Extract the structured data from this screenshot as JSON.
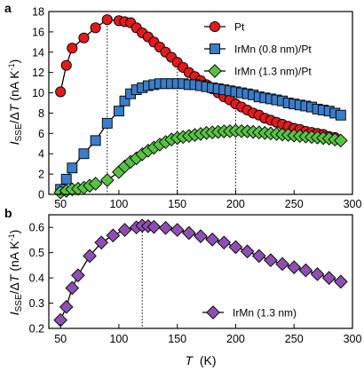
{
  "chart_data": [
    {
      "panel_label": "a",
      "type": "line",
      "x": [
        50,
        55,
        60,
        65,
        70,
        75,
        80,
        85,
        90,
        95,
        100,
        105,
        110,
        115,
        120,
        125,
        130,
        135,
        140,
        145,
        150,
        155,
        160,
        165,
        170,
        175,
        180,
        185,
        190,
        195,
        200,
        205,
        210,
        215,
        220,
        225,
        230,
        235,
        240,
        245,
        250,
        255,
        260,
        265,
        270,
        275,
        280,
        285,
        290
      ],
      "series": [
        {
          "name": "Pt",
          "color": "#e31a1c",
          "marker": "circle",
          "points": [
            [
              50,
              10.1
            ],
            [
              55,
              12.7
            ],
            [
              60,
              14.4
            ],
            [
              70,
              15.4
            ],
            [
              80,
              16.4
            ],
            [
              90,
              17.2
            ],
            [
              100,
              17.1
            ],
            [
              105,
              17.0
            ],
            [
              110,
              16.9
            ],
            [
              115,
              16.4
            ],
            [
              120,
              15.9
            ],
            [
              125,
              15.5
            ],
            [
              130,
              15.0
            ],
            [
              135,
              14.5
            ],
            [
              140,
              14.0
            ],
            [
              145,
              13.5
            ],
            [
              150,
              13.0
            ],
            [
              155,
              12.5
            ],
            [
              160,
              12.0
            ],
            [
              165,
              11.6
            ],
            [
              170,
              11.2
            ],
            [
              175,
              10.8
            ],
            [
              180,
              10.4
            ],
            [
              185,
              10.0
            ],
            [
              190,
              9.6
            ],
            [
              195,
              9.3
            ],
            [
              200,
              8.9
            ],
            [
              205,
              8.6
            ],
            [
              210,
              8.3
            ],
            [
              215,
              8.0
            ],
            [
              220,
              7.8
            ],
            [
              225,
              7.5
            ],
            [
              230,
              7.3
            ],
            [
              235,
              7.1
            ],
            [
              240,
              6.9
            ],
            [
              245,
              6.7
            ],
            [
              250,
              6.5
            ],
            [
              255,
              6.4
            ],
            [
              260,
              6.2
            ],
            [
              265,
              6.1
            ],
            [
              270,
              6.0
            ],
            [
              275,
              5.9
            ],
            [
              280,
              5.7
            ],
            [
              285,
              5.6
            ]
          ]
        },
        {
          "name": "IrMn (0.8 nm)/Pt",
          "color": "#3a7dc9",
          "marker": "square",
          "points": [
            [
              50,
              0.5
            ],
            [
              55,
              1.5
            ],
            [
              60,
              2.6
            ],
            [
              70,
              4.0
            ],
            [
              80,
              5.3
            ],
            [
              90,
              7.0
            ],
            [
              100,
              8.2
            ],
            [
              105,
              9.2
            ],
            [
              110,
              9.9
            ],
            [
              115,
              10.3
            ],
            [
              120,
              10.5
            ],
            [
              125,
              10.7
            ],
            [
              130,
              10.8
            ],
            [
              135,
              10.9
            ],
            [
              140,
              10.9
            ],
            [
              145,
              10.9
            ],
            [
              150,
              10.9
            ],
            [
              155,
              10.9
            ],
            [
              160,
              10.8
            ],
            [
              165,
              10.8
            ],
            [
              170,
              10.7
            ],
            [
              175,
              10.6
            ],
            [
              180,
              10.5
            ],
            [
              185,
              10.4
            ],
            [
              190,
              10.3
            ],
            [
              195,
              10.2
            ],
            [
              200,
              10.1
            ],
            [
              205,
              10.0
            ],
            [
              210,
              9.9
            ],
            [
              215,
              9.8
            ],
            [
              220,
              9.6
            ],
            [
              225,
              9.5
            ],
            [
              230,
              9.4
            ],
            [
              235,
              9.3
            ],
            [
              240,
              9.2
            ],
            [
              245,
              9.0
            ],
            [
              250,
              8.9
            ],
            [
              255,
              8.8
            ],
            [
              260,
              8.7
            ],
            [
              265,
              8.6
            ],
            [
              270,
              8.4
            ],
            [
              275,
              8.3
            ],
            [
              280,
              8.2
            ],
            [
              285,
              8.0
            ],
            [
              290,
              7.8
            ]
          ]
        },
        {
          "name": "IrMn (1.3 nm)/Pt",
          "color": "#57c241",
          "marker": "diamond",
          "points": [
            [
              50,
              0.2
            ],
            [
              55,
              0.35
            ],
            [
              60,
              0.5
            ],
            [
              65,
              0.55
            ],
            [
              70,
              0.65
            ],
            [
              75,
              0.85
            ],
            [
              80,
              1.05
            ],
            [
              90,
              1.4
            ],
            [
              100,
              2.2
            ],
            [
              105,
              2.75
            ],
            [
              110,
              3.2
            ],
            [
              115,
              3.55
            ],
            [
              120,
              3.95
            ],
            [
              125,
              4.3
            ],
            [
              130,
              4.6
            ],
            [
              135,
              4.9
            ],
            [
              140,
              5.15
            ],
            [
              145,
              5.4
            ],
            [
              150,
              5.55
            ],
            [
              155,
              5.65
            ],
            [
              160,
              5.75
            ],
            [
              165,
              5.85
            ],
            [
              170,
              5.95
            ],
            [
              175,
              6.05
            ],
            [
              180,
              6.1
            ],
            [
              185,
              6.15
            ],
            [
              190,
              6.2
            ],
            [
              195,
              6.22
            ],
            [
              200,
              6.25
            ],
            [
              205,
              6.22
            ],
            [
              210,
              6.2
            ],
            [
              215,
              6.15
            ],
            [
              220,
              6.1
            ],
            [
              225,
              6.05
            ],
            [
              230,
              6.0
            ],
            [
              235,
              5.95
            ],
            [
              240,
              5.9
            ],
            [
              245,
              5.85
            ],
            [
              250,
              5.8
            ],
            [
              255,
              5.75
            ],
            [
              260,
              5.7
            ],
            [
              265,
              5.65
            ],
            [
              270,
              5.6
            ],
            [
              275,
              5.55
            ],
            [
              280,
              5.5
            ],
            [
              285,
              5.4
            ],
            [
              290,
              5.3
            ]
          ]
        }
      ],
      "vlines": [
        90,
        150,
        200
      ],
      "xlim": [
        40,
        300
      ],
      "ylim": [
        0,
        18
      ],
      "xticks": [
        "50",
        "100",
        "150",
        "200",
        "250",
        "300"
      ],
      "yticks": [
        "0",
        "2",
        "4",
        "6",
        "8",
        "10",
        "12",
        "14",
        "16",
        "18"
      ],
      "ylabel": {
        "main": "I",
        "sub": "SSE",
        "rest": "/Δ",
        "var": "T",
        "unit": " (nA K",
        "sup": "-1",
        "close": ")"
      },
      "legend_position": "top-right",
      "grid": false
    },
    {
      "panel_label": "b",
      "type": "line",
      "series": [
        {
          "name": "IrMn (1.3 nm)",
          "color": "#8e4fb3",
          "marker": "diamond",
          "points": [
            [
              50,
              0.233
            ],
            [
              55,
              0.285
            ],
            [
              60,
              0.36
            ],
            [
              65,
              0.41
            ],
            [
              75,
              0.487
            ],
            [
              85,
              0.54
            ],
            [
              95,
              0.568
            ],
            [
              105,
              0.59
            ],
            [
              115,
              0.6
            ],
            [
              120,
              0.607
            ],
            [
              125,
              0.605
            ],
            [
              130,
              0.602
            ],
            [
              140,
              0.598
            ],
            [
              150,
              0.59
            ],
            [
              160,
              0.578
            ],
            [
              170,
              0.565
            ],
            [
              180,
              0.552
            ],
            [
              190,
              0.54
            ],
            [
              200,
              0.522
            ],
            [
              210,
              0.505
            ],
            [
              220,
              0.487
            ],
            [
              230,
              0.47
            ],
            [
              240,
              0.455
            ],
            [
              250,
              0.442
            ],
            [
              260,
              0.43
            ],
            [
              270,
              0.415
            ],
            [
              280,
              0.4
            ],
            [
              290,
              0.385
            ]
          ]
        }
      ],
      "vlines": [
        120
      ],
      "xlim": [
        40,
        300
      ],
      "ylim": [
        0.2,
        0.65
      ],
      "xticks": [
        "50",
        "100",
        "150",
        "200",
        "250",
        "300"
      ],
      "yticks": [
        "0.2",
        "0.3",
        "0.4",
        "0.5",
        "0.6"
      ],
      "xlabel": {
        "var": "T",
        "unit": "  (K)"
      },
      "ylabel": {
        "main": "I",
        "sub": "SSE",
        "rest": "/Δ",
        "var": "T",
        "unit": " (nA K",
        "sup": "-1",
        "close": ")"
      },
      "legend_position": "bottom-right",
      "grid": false
    }
  ]
}
